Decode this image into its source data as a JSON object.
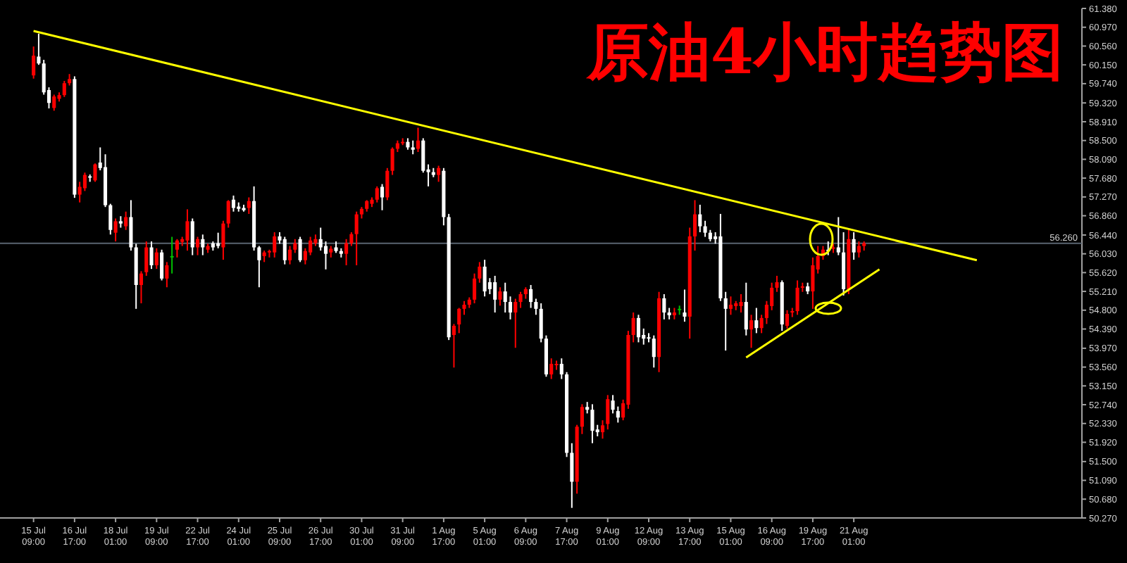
{
  "chart_data": {
    "type": "candlestick",
    "title": "原油4小时趋势图",
    "categories": [
      "15 Jul 09:00",
      null,
      null,
      null,
      null,
      null,
      null,
      null,
      "16 Jul 17:00",
      null,
      null,
      null,
      null,
      null,
      null,
      null,
      "18 Jul 01:00",
      null,
      null,
      null,
      null,
      null,
      null,
      null,
      "19 Jul 09:00",
      null,
      null,
      null,
      null,
      null,
      null,
      null,
      "22 Jul 17:00",
      null,
      null,
      null,
      null,
      null,
      null,
      null,
      "24 Jul 01:00",
      null,
      null,
      null,
      null,
      null,
      null,
      null,
      "25 Jul 09:00",
      null,
      null,
      null,
      null,
      null,
      null,
      null,
      "26 Jul 17:00",
      null,
      null,
      null,
      null,
      null,
      null,
      null,
      "30 Jul 01:00",
      null,
      null,
      null,
      null,
      null,
      null,
      null,
      "31 Jul 09:00",
      null,
      null,
      null,
      null,
      null,
      null,
      null,
      "1 Aug 17:00",
      null,
      null,
      null,
      null,
      null,
      null,
      null,
      "5 Aug 01:00",
      null,
      null,
      null,
      null,
      null,
      null,
      null,
      "6 Aug 09:00",
      null,
      null,
      null,
      null,
      null,
      null,
      null,
      "7 Aug 17:00",
      null,
      null,
      null,
      null,
      null,
      null,
      null,
      "9 Aug 01:00",
      null,
      null,
      null,
      null,
      null,
      null,
      null,
      "12 Aug 09:00",
      null,
      null,
      null,
      null,
      null,
      null,
      null,
      "13 Aug 17:00",
      null,
      null,
      null,
      null,
      null,
      null,
      null,
      "15 Aug 01:00",
      null,
      null,
      null,
      null,
      null,
      null,
      null,
      "16 Aug 09:00",
      null,
      null,
      null,
      null,
      null,
      null,
      null,
      "19 Aug 17:00",
      null,
      null,
      null,
      null,
      null,
      null,
      null,
      "21 Aug 01:00",
      null,
      null,
      null,
      null,
      null,
      null,
      null,
      null,
      null,
      null,
      null,
      null,
      null,
      null,
      null,
      null,
      null,
      null,
      null,
      null,
      null,
      null,
      null,
      null,
      null,
      null,
      null,
      null,
      null,
      null,
      null,
      null,
      null,
      null,
      null,
      null,
      null,
      null,
      null,
      null,
      null,
      null,
      null,
      null
    ],
    "ohlc": [
      [
        59.92,
        60.55,
        59.85,
        60.35
      ],
      [
        60.33,
        60.83,
        60.15,
        60.18
      ],
      [
        60.18,
        60.26,
        59.5,
        59.55
      ],
      [
        59.6,
        59.66,
        59.2,
        59.32
      ],
      [
        59.21,
        59.5,
        59.15,
        59.46
      ],
      [
        59.41,
        59.55,
        59.35,
        59.49
      ],
      [
        59.49,
        59.8,
        59.45,
        59.75
      ],
      [
        59.75,
        59.95,
        59.7,
        59.84
      ],
      [
        59.84,
        59.9,
        57.25,
        57.32
      ],
      [
        57.32,
        57.6,
        57.15,
        57.49
      ],
      [
        57.46,
        57.8,
        57.4,
        57.75
      ],
      [
        57.72,
        57.76,
        57.6,
        57.69
      ],
      [
        57.63,
        58.0,
        57.6,
        57.98
      ],
      [
        58.02,
        58.35,
        57.85,
        57.9
      ],
      [
        57.92,
        58.2,
        57.05,
        57.09
      ],
      [
        57.09,
        57.12,
        56.45,
        56.55
      ],
      [
        56.49,
        56.8,
        56.3,
        56.74
      ],
      [
        56.74,
        56.85,
        56.6,
        56.69
      ],
      [
        56.63,
        56.95,
        56.55,
        56.83
      ],
      [
        56.83,
        57.2,
        56.1,
        56.17
      ],
      [
        56.17,
        56.25,
        54.83,
        55.35
      ],
      [
        55.35,
        55.65,
        54.95,
        55.6
      ],
      [
        55.63,
        56.3,
        55.55,
        56.17
      ],
      [
        56.17,
        56.3,
        55.7,
        55.78
      ],
      [
        55.78,
        56.15,
        55.7,
        56.06
      ],
      [
        56.06,
        56.12,
        55.45,
        55.49
      ],
      [
        55.49,
        55.85,
        55.3,
        55.78
      ],
      [
        55.95,
        56.4,
        55.6,
        55.98
      ],
      [
        56.12,
        56.35,
        55.95,
        56.32
      ],
      [
        56.29,
        56.4,
        56.2,
        56.35
      ],
      [
        56.32,
        57.0,
        56.1,
        56.74
      ],
      [
        56.74,
        56.8,
        56.0,
        56.17
      ],
      [
        56.17,
        56.4,
        56.0,
        56.35
      ],
      [
        56.35,
        56.45,
        56.0,
        56.17
      ],
      [
        56.12,
        56.25,
        56.05,
        56.2
      ],
      [
        56.26,
        56.3,
        56.1,
        56.17
      ],
      [
        56.26,
        56.49,
        56.15,
        56.2
      ],
      [
        56.17,
        56.75,
        55.9,
        56.69
      ],
      [
        56.69,
        57.2,
        56.6,
        57.18
      ],
      [
        57.21,
        57.3,
        56.95,
        57.03
      ],
      [
        57.06,
        57.15,
        56.95,
        57.01
      ],
      [
        57.03,
        57.1,
        56.95,
        56.98
      ],
      [
        57.03,
        57.26,
        56.9,
        57.18
      ],
      [
        57.18,
        57.5,
        56.1,
        56.17
      ],
      [
        56.17,
        56.2,
        55.3,
        55.89
      ],
      [
        55.98,
        56.1,
        55.85,
        56.06
      ],
      [
        56.06,
        56.12,
        55.95,
        56.09
      ],
      [
        56.06,
        56.5,
        55.95,
        56.41
      ],
      [
        56.41,
        56.5,
        56.25,
        56.32
      ],
      [
        56.35,
        56.4,
        55.8,
        55.89
      ],
      [
        55.89,
        56.2,
        55.8,
        56.12
      ],
      [
        56.12,
        56.35,
        56.05,
        56.26
      ],
      [
        56.35,
        56.4,
        55.85,
        55.89
      ],
      [
        55.89,
        56.15,
        55.8,
        56.09
      ],
      [
        56.06,
        56.4,
        56.0,
        56.32
      ],
      [
        56.26,
        56.45,
        56.2,
        56.35
      ],
      [
        56.35,
        56.6,
        56.1,
        56.17
      ],
      [
        56.2,
        56.3,
        55.69,
        56.03
      ],
      [
        56.06,
        56.2,
        55.95,
        56.14
      ],
      [
        56.17,
        56.3,
        56.05,
        56.09
      ],
      [
        56.09,
        56.15,
        55.95,
        56.03
      ],
      [
        56.03,
        56.35,
        55.78,
        56.26
      ],
      [
        56.26,
        56.5,
        56.2,
        56.46
      ],
      [
        56.46,
        56.95,
        55.78,
        56.89
      ],
      [
        56.89,
        57.05,
        56.8,
        57.01
      ],
      [
        57.01,
        57.2,
        56.95,
        57.18
      ],
      [
        57.12,
        57.26,
        57.05,
        57.21
      ],
      [
        57.21,
        57.5,
        57.15,
        57.46
      ],
      [
        57.49,
        57.55,
        56.98,
        57.26
      ],
      [
        57.26,
        57.9,
        57.2,
        57.84
      ],
      [
        57.84,
        58.35,
        57.75,
        58.32
      ],
      [
        58.32,
        58.5,
        58.25,
        58.44
      ],
      [
        58.44,
        58.55,
        58.4,
        58.47
      ],
      [
        58.47,
        58.55,
        58.3,
        58.35
      ],
      [
        58.35,
        58.5,
        58.2,
        58.3
      ],
      [
        58.32,
        58.78,
        58.25,
        58.5
      ],
      [
        58.5,
        58.55,
        57.8,
        57.84
      ],
      [
        57.87,
        57.98,
        57.5,
        57.81
      ],
      [
        57.81,
        57.9,
        57.7,
        57.75
      ],
      [
        57.75,
        57.95,
        57.6,
        57.9
      ],
      [
        57.84,
        57.9,
        56.65,
        56.83
      ],
      [
        56.83,
        56.9,
        54.15,
        54.21
      ],
      [
        54.26,
        54.5,
        53.55,
        54.46
      ],
      [
        54.49,
        54.85,
        54.3,
        54.83
      ],
      [
        54.83,
        55.0,
        54.7,
        54.92
      ],
      [
        54.92,
        55.08,
        54.85,
        55.03
      ],
      [
        55.03,
        55.6,
        54.95,
        55.49
      ],
      [
        55.49,
        55.85,
        55.4,
        55.75
      ],
      [
        55.75,
        55.9,
        55.1,
        55.21
      ],
      [
        55.41,
        55.5,
        55.15,
        55.26
      ],
      [
        55.41,
        55.55,
        54.75,
        55.03
      ],
      [
        55.03,
        55.3,
        54.9,
        55.21
      ],
      [
        55.21,
        55.4,
        54.75,
        54.98
      ],
      [
        54.98,
        55.1,
        54.6,
        54.75
      ],
      [
        54.75,
        55.05,
        53.98,
        54.98
      ],
      [
        54.98,
        55.2,
        54.85,
        55.15
      ],
      [
        55.15,
        55.3,
        55.05,
        55.26
      ],
      [
        55.26,
        55.35,
        54.85,
        54.98
      ],
      [
        54.98,
        55.05,
        54.7,
        54.83
      ],
      [
        54.83,
        54.95,
        54.1,
        54.18
      ],
      [
        54.18,
        54.25,
        53.35,
        53.4
      ],
      [
        53.4,
        53.75,
        53.3,
        53.63
      ],
      [
        53.6,
        53.7,
        53.5,
        53.63
      ],
      [
        53.63,
        53.75,
        53.3,
        53.4
      ],
      [
        53.4,
        53.45,
        51.6,
        51.69
      ],
      [
        51.69,
        51.9,
        50.49,
        51.06
      ],
      [
        51.06,
        52.3,
        50.8,
        52.26
      ],
      [
        52.26,
        52.75,
        52.1,
        52.69
      ],
      [
        52.69,
        52.8,
        52.55,
        52.63
      ],
      [
        52.63,
        52.75,
        51.9,
        52.17
      ],
      [
        52.2,
        52.3,
        52.05,
        52.14
      ],
      [
        52.14,
        52.4,
        52.0,
        52.29
      ],
      [
        52.32,
        52.95,
        52.2,
        52.86
      ],
      [
        52.83,
        52.95,
        52.55,
        52.63
      ],
      [
        52.6,
        52.7,
        52.35,
        52.46
      ],
      [
        52.46,
        52.85,
        52.4,
        52.77
      ],
      [
        52.74,
        54.35,
        52.65,
        54.26
      ],
      [
        54.26,
        54.75,
        54.1,
        54.63
      ],
      [
        54.63,
        54.7,
        54.1,
        54.21
      ],
      [
        54.26,
        54.4,
        54.05,
        54.18
      ],
      [
        54.21,
        54.3,
        54.1,
        54.18
      ],
      [
        54.18,
        54.25,
        53.55,
        53.78
      ],
      [
        53.78,
        55.2,
        53.45,
        55.06
      ],
      [
        55.06,
        55.15,
        54.6,
        54.75
      ],
      [
        54.75,
        54.85,
        54.6,
        54.69
      ],
      [
        54.69,
        54.85,
        54.6,
        54.75
      ],
      [
        54.8,
        54.9,
        54.7,
        54.83
      ],
      [
        54.75,
        55.25,
        54.55,
        54.66
      ],
      [
        54.66,
        56.6,
        54.18,
        56.41
      ],
      [
        56.41,
        57.2,
        56.1,
        56.89
      ],
      [
        56.89,
        57.1,
        56.5,
        56.63
      ],
      [
        56.63,
        56.75,
        56.4,
        56.49
      ],
      [
        56.49,
        56.55,
        56.3,
        56.35
      ],
      [
        56.41,
        56.5,
        56.25,
        56.35
      ],
      [
        56.41,
        56.9,
        55.0,
        55.06
      ],
      [
        55.06,
        55.2,
        53.92,
        54.83
      ],
      [
        54.83,
        55.1,
        54.7,
        54.92
      ],
      [
        54.89,
        55.0,
        54.8,
        54.95
      ],
      [
        54.89,
        55.15,
        54.75,
        54.98
      ],
      [
        54.98,
        55.4,
        54.25,
        54.38
      ],
      [
        54.38,
        54.7,
        53.98,
        54.58
      ],
      [
        54.58,
        54.85,
        54.3,
        54.41
      ],
      [
        54.41,
        54.7,
        54.3,
        54.63
      ],
      [
        54.63,
        55.0,
        54.5,
        54.92
      ],
      [
        54.89,
        55.4,
        54.8,
        55.29
      ],
      [
        55.29,
        55.55,
        55.2,
        55.41
      ],
      [
        55.41,
        55.45,
        54.35,
        54.49
      ],
      [
        54.46,
        54.8,
        54.4,
        54.72
      ],
      [
        54.75,
        54.85,
        54.65,
        54.78
      ],
      [
        54.78,
        55.45,
        54.7,
        55.29
      ],
      [
        55.29,
        55.4,
        55.2,
        55.32
      ],
      [
        55.32,
        55.4,
        55.15,
        55.21
      ],
      [
        55.21,
        55.95,
        54.83,
        55.78
      ],
      [
        55.69,
        56.2,
        55.6,
        55.98
      ],
      [
        55.98,
        56.2,
        55.9,
        56.12
      ],
      [
        56.12,
        56.3,
        56.0,
        56.09
      ],
      [
        56.14,
        56.25,
        56.05,
        56.17
      ],
      [
        56.17,
        56.83,
        56.0,
        56.06
      ],
      [
        56.06,
        56.5,
        55.12,
        55.26
      ],
      [
        55.26,
        56.55,
        55.15,
        56.35
      ],
      [
        56.35,
        56.5,
        55.9,
        56.06
      ],
      [
        56.06,
        56.3,
        55.95,
        56.2
      ],
      [
        56.2,
        56.3,
        56.1,
        56.26
      ],
      null,
      null,
      null,
      null,
      null,
      null,
      null,
      null,
      null,
      null,
      null,
      null,
      null,
      null,
      null,
      null,
      null,
      null,
      null,
      null,
      null,
      null,
      null,
      null,
      null,
      null,
      null,
      null,
      null,
      null,
      null,
      null,
      null,
      null,
      null,
      null,
      null,
      null,
      null,
      null,
      null,
      null
    ],
    "colors": [
      "#ff0000",
      "#ffffff",
      "#ffffff",
      "#ffffff",
      "#ff0000",
      "#ff0000",
      "#ff0000",
      "#ff0000",
      "#ffffff",
      "#ff0000",
      "#ff0000",
      "#ffffff",
      "#ff0000",
      "#ffffff",
      "#ffffff",
      "#ffffff",
      "#ff0000",
      "#ffffff",
      "#ff0000",
      "#ffffff",
      "#ffffff",
      "#ff0000",
      "#ff0000",
      "#ffffff",
      "#ff0000",
      "#ffffff",
      "#ff0000",
      "#00c000",
      "#ff0000",
      "#ff0000",
      "#ff0000",
      "#ffffff",
      "#ff0000",
      "#ffffff",
      "#ff0000",
      "#ffffff",
      "#ffffff",
      "#ff0000",
      "#ff0000",
      "#ffffff",
      "#ffffff",
      "#ffffff",
      "#ff0000",
      "#ffffff",
      "#ffffff",
      "#ff0000",
      "#ff0000",
      "#ff0000",
      "#ffffff",
      "#ffffff",
      "#ff0000",
      "#ff0000",
      "#ffffff",
      "#ff0000",
      "#ff0000",
      "#ff0000",
      "#ffffff",
      "#ffffff",
      "#ff0000",
      "#ffffff",
      "#ffffff",
      "#ff0000",
      "#ff0000",
      "#ff0000",
      "#ff0000",
      "#ff0000",
      "#ff0000",
      "#ff0000",
      "#ffffff",
      "#ff0000",
      "#ff0000",
      "#ff0000",
      "#ff0000",
      "#ffffff",
      "#ffffff",
      "#ff0000",
      "#ffffff",
      "#ffffff",
      "#ffffff",
      "#ff0000",
      "#ffffff",
      "#ffffff",
      "#ff0000",
      "#ff0000",
      "#ff0000",
      "#ff0000",
      "#ff0000",
      "#ff0000",
      "#ffffff",
      "#ffffff",
      "#ffffff",
      "#ff0000",
      "#ffffff",
      "#ffffff",
      "#ff0000",
      "#ff0000",
      "#ff0000",
      "#ffffff",
      "#ffffff",
      "#ffffff",
      "#ffffff",
      "#ff0000",
      "#ff0000",
      "#ffffff",
      "#ffffff",
      "#ffffff",
      "#ff0000",
      "#ff0000",
      "#ffffff",
      "#ffffff",
      "#ffffff",
      "#ff0000",
      "#ff0000",
      "#ffffff",
      "#ffffff",
      "#ff0000",
      "#ff0000",
      "#ff0000",
      "#ffffff",
      "#ffffff",
      "#ffffff",
      "#ffffff",
      "#ff0000",
      "#ffffff",
      "#ffffff",
      "#ff0000",
      "#00c000",
      "#ffffff",
      "#ff0000",
      "#ff0000",
      "#ffffff",
      "#ffffff",
      "#ffffff",
      "#ffffff",
      "#ffffff",
      "#ffffff",
      "#ff0000",
      "#ff0000",
      "#ff0000",
      "#ffffff",
      "#ff0000",
      "#ffffff",
      "#ff0000",
      "#ff0000",
      "#ff0000",
      "#ff0000",
      "#ffffff",
      "#ff0000",
      "#ff0000",
      "#ff0000",
      "#ff0000",
      "#ffffff",
      "#ff0000",
      "#ff0000",
      "#ff0000",
      "#ffffff",
      "#ff0000",
      "#ffffff",
      "#ffffff",
      "#ff0000",
      "#ffffff",
      "#ff0000",
      "#ff0000",
      null,
      null,
      null,
      null,
      null,
      null,
      null,
      null,
      null,
      null,
      null,
      null,
      null,
      null,
      null,
      null,
      null,
      null,
      null,
      null,
      null,
      null,
      null,
      null,
      null,
      null,
      null,
      null,
      null,
      null,
      null,
      null,
      null,
      null,
      null,
      null,
      null,
      null,
      null,
      null,
      null,
      null
    ],
    "series": [
      {
        "type": "line",
        "color": "#ffff00",
        "values": [
          60.89,
          null,
          null,
          null,
          null,
          null,
          null,
          null,
          null,
          null,
          null,
          null,
          null,
          null,
          null,
          null,
          null,
          null,
          null,
          null,
          null,
          null,
          null,
          null,
          null,
          null,
          null,
          null,
          null,
          null,
          null,
          null,
          null,
          null,
          null,
          null,
          null,
          null,
          null,
          null,
          null,
          null,
          null,
          null,
          null,
          null,
          null,
          null,
          null,
          null,
          null,
          null,
          null,
          null,
          null,
          null,
          null,
          null,
          null,
          null,
          null,
          null,
          null,
          null,
          null,
          null,
          null,
          null,
          null,
          null,
          null,
          null,
          null,
          null,
          null,
          null,
          null,
          null,
          null,
          null,
          null,
          null,
          null,
          null,
          null,
          null,
          null,
          null,
          null,
          null,
          null,
          null,
          null,
          null,
          null,
          null,
          null,
          null,
          null,
          null,
          null,
          null,
          null,
          null,
          null,
          null,
          null,
          null,
          null,
          null,
          null,
          null,
          null,
          null,
          null,
          null,
          null,
          null,
          null,
          null,
          null,
          null,
          null,
          null,
          null,
          null,
          null,
          null,
          null,
          null,
          null,
          null,
          null,
          null,
          null,
          null,
          null,
          null,
          null,
          null,
          null,
          null,
          null,
          null,
          null,
          null,
          null,
          null,
          null,
          null,
          null,
          null,
          null,
          null,
          null,
          null,
          null,
          null,
          null,
          null,
          null,
          null,
          null,
          null,
          null,
          null,
          null,
          null,
          null,
          null,
          null,
          null,
          null,
          null,
          null,
          null,
          null,
          null,
          null,
          null,
          null,
          null,
          null,
          null,
          55.89,
          null,
          null,
          null,
          null,
          null,
          null,
          null,
          null,
          null,
          null,
          null,
          null,
          null,
          null,
          null,
          null,
          null,
          null,
          null,
          null
        ]
      },
      {
        "type": "line",
        "color": "#ffff00",
        "values": [
          null,
          null,
          null,
          null,
          null,
          null,
          null,
          null,
          null,
          null,
          null,
          null,
          null,
          null,
          null,
          null,
          null,
          null,
          null,
          null,
          null,
          null,
          null,
          null,
          null,
          null,
          null,
          null,
          null,
          null,
          null,
          null,
          null,
          null,
          null,
          null,
          null,
          null,
          null,
          null,
          null,
          null,
          null,
          null,
          null,
          null,
          null,
          null,
          null,
          null,
          null,
          null,
          null,
          null,
          null,
          null,
          null,
          null,
          null,
          null,
          null,
          null,
          null,
          null,
          null,
          null,
          null,
          null,
          null,
          null,
          null,
          null,
          null,
          null,
          null,
          null,
          null,
          null,
          null,
          null,
          null,
          null,
          null,
          null,
          null,
          null,
          null,
          null,
          null,
          null,
          null,
          null,
          null,
          null,
          null,
          null,
          null,
          null,
          null,
          null,
          null,
          null,
          null,
          null,
          null,
          null,
          null,
          null,
          null,
          null,
          null,
          null,
          null,
          null,
          null,
          null,
          null,
          null,
          null,
          null,
          null,
          null,
          null,
          null,
          null,
          null,
          null,
          null,
          null,
          null,
          null,
          null,
          null,
          null,
          null,
          null,
          null,
          null,
          null,
          53.77,
          null,
          null,
          null,
          null,
          null,
          null,
          null,
          null,
          null,
          null,
          null,
          null,
          null,
          null,
          null,
          null,
          null,
          null,
          null,
          null,
          null,
          null,
          null,
          null,
          null,
          55.69,
          null,
          null,
          null,
          null,
          null,
          null,
          null,
          null,
          null,
          null,
          null,
          null,
          null,
          null,
          null,
          null,
          null,
          null,
          null,
          null,
          null,
          null,
          null,
          null,
          null,
          null,
          null,
          null,
          null,
          null,
          null,
          null,
          null,
          null,
          null,
          null,
          null,
          null,
          null
        ]
      }
    ],
    "ylim": [
      50.27,
      61.38
    ],
    "yticks": [
      {
        "value": 61.38,
        "label": "61.380"
      },
      {
        "value": 60.97,
        "label": "60.970"
      },
      {
        "value": 60.56,
        "label": "60.560"
      },
      {
        "value": 60.15,
        "label": "60.150"
      },
      {
        "value": 59.74,
        "label": "59.740"
      },
      {
        "value": 59.32,
        "label": "59.320"
      },
      {
        "value": 58.91,
        "label": "58.910"
      },
      {
        "value": 58.5,
        "label": "58.500"
      },
      {
        "value": 58.09,
        "label": "58.090"
      },
      {
        "value": 57.68,
        "label": "57.680"
      },
      {
        "value": 57.27,
        "label": "57.270"
      },
      {
        "value": 56.86,
        "label": "56.860"
      },
      {
        "value": 56.44,
        "label": "56.440"
      },
      {
        "value": 56.03,
        "label": "56.030"
      },
      {
        "value": 55.62,
        "label": "55.620"
      },
      {
        "value": 55.21,
        "label": "55.210"
      },
      {
        "value": 54.8,
        "label": "54.800"
      },
      {
        "value": 54.39,
        "label": "54.390"
      },
      {
        "value": 53.97,
        "label": "53.970"
      },
      {
        "value": 53.56,
        "label": "53.560"
      },
      {
        "value": 53.15,
        "label": "53.150"
      },
      {
        "value": 52.74,
        "label": "52.740"
      },
      {
        "value": 52.33,
        "label": "52.330"
      },
      {
        "value": 51.92,
        "label": "51.920"
      },
      {
        "value": 51.5,
        "label": "51.500"
      },
      {
        "value": 51.09,
        "label": "51.090"
      },
      {
        "value": 50.68,
        "label": "50.680"
      },
      {
        "value": 50.27,
        "label": "50.270"
      }
    ],
    "ref_lines": [
      {
        "axis": "y",
        "value": 56.26,
        "label": "56.260",
        "color": "#5a6470"
      }
    ]
  }
}
